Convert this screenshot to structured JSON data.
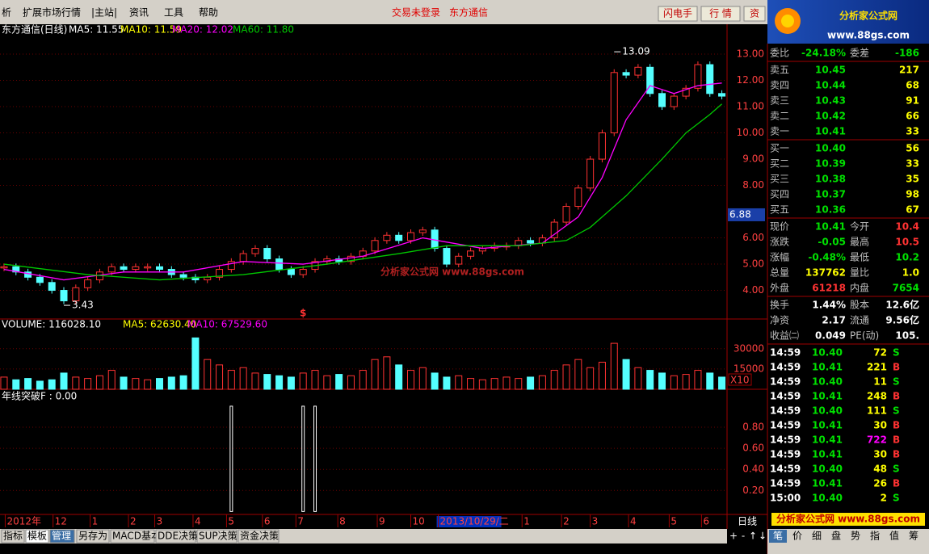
{
  "menu": {
    "items": [
      "析",
      "扩展市场行情",
      "|主站|",
      "资讯",
      "工具",
      "帮助"
    ],
    "status": [
      "交易未登录",
      "东方通信"
    ],
    "buttons": [
      "闪电手",
      "行 情",
      "资"
    ],
    "logo": {
      "title": "分析家公式网",
      "url": "www.88gs.com"
    }
  },
  "chart_data": [
    {
      "type": "candlestick",
      "title": "东方通信(日线)",
      "legend": [
        {
          "label": "MA5: 11.55",
          "color": "#ffffff"
        },
        {
          "label": "MA10: 11.59",
          "color": "#ffff00"
        }
      ],
      "xlim": [
        -0.2,
        60.3
      ],
      "ylim": [
        2.94,
        13.74
      ],
      "yticks": [
        {
          "value": 4,
          "label": "4.00"
        },
        {
          "value": 5,
          "label": "5.00"
        },
        {
          "value": 6,
          "label": "6.00"
        },
        {
          "value": 8,
          "label": "8.00"
        },
        {
          "value": 9,
          "label": "9.00"
        },
        {
          "value": 10,
          "label": "10.00"
        },
        {
          "value": 11,
          "label": "11.00"
        },
        {
          "value": 12,
          "label": "12.00"
        },
        {
          "value": 13,
          "label": "13.00"
        }
      ],
      "grid": true,
      "up_color": "#ff3232",
      "down_color": "#54ffff",
      "values": [
        4.9,
        4.7,
        4.5,
        4.3,
        4.0,
        3.6,
        4.1,
        4.4,
        4.7,
        4.9,
        4.8,
        4.9,
        4.9,
        4.8,
        4.6,
        4.5,
        4.4,
        4.5,
        4.8,
        5.1,
        5.4,
        5.6,
        5.2,
        4.8,
        4.6,
        4.8,
        5.1,
        5.2,
        5.1,
        5.3,
        5.5,
        5.9,
        6.1,
        5.9,
        6.2,
        6.3,
        5.6,
        5.0,
        5.3,
        5.5,
        5.6,
        5.7,
        5.7,
        5.9,
        5.8,
        6.0,
        6.6,
        7.2,
        7.9,
        9.0,
        10.0,
        12.3,
        12.2,
        12.5,
        11.5,
        11.0,
        11.4,
        11.7,
        12.6,
        11.5,
        11.4
      ],
      "series": [
        {
          "name": "MA20: 12.02",
          "color": "#ff00ff",
          "x": [
            0,
            5,
            10,
            15,
            20,
            25,
            30,
            35,
            40,
            45,
            48,
            50,
            52,
            54,
            56,
            58,
            60
          ],
          "values": [
            4.8,
            4.4,
            4.7,
            4.7,
            5.1,
            5.0,
            5.3,
            6.0,
            5.6,
            5.8,
            6.8,
            8.3,
            10.5,
            11.8,
            11.5,
            11.8,
            11.9
          ]
        },
        {
          "name": "MA60: 11.80",
          "color": "#00c800",
          "x": [
            0,
            7,
            13,
            20,
            27,
            33,
            37,
            43,
            47,
            49,
            52,
            55,
            57,
            59,
            60
          ],
          "values": [
            5.0,
            4.6,
            4.4,
            4.6,
            5.0,
            5.4,
            5.7,
            5.7,
            5.9,
            6.4,
            7.6,
            9.0,
            10.0,
            10.7,
            11.1
          ]
        }
      ],
      "annotations": [
        {
          "x": 51,
          "value": 13.09
        },
        {
          "x": 5,
          "value": 3.43
        }
      ],
      "cursor_price": 6.88,
      "marker": {
        "x": 25,
        "text": "$"
      },
      "watermark": "分析家公式网 www.88gs.com"
    },
    {
      "type": "bar",
      "title": "VOLUME: 116028.10",
      "legend": [
        {
          "label": "MA5: 62630.40",
          "color": "#ffff00"
        },
        {
          "label": "MA10: 67529.60",
          "color": "#ff00ff"
        }
      ],
      "scale_label": "X10",
      "ylim": [
        0,
        46000
      ],
      "yticks": [
        15000,
        30000
      ],
      "values": [
        9000,
        7000,
        8000,
        6000,
        7000,
        12000,
        9000,
        8000,
        10000,
        14000,
        9000,
        8000,
        7000,
        8000,
        9000,
        10000,
        38000,
        22000,
        18000,
        14000,
        16000,
        12000,
        11000,
        10000,
        9000,
        12000,
        14000,
        10000,
        11000,
        10000,
        14000,
        22000,
        24000,
        18000,
        14000,
        16000,
        12000,
        9000,
        10000,
        8000,
        7000,
        8000,
        9000,
        8000,
        9000,
        10000,
        14000,
        18000,
        22000,
        16000,
        20000,
        34000,
        22000,
        16000,
        14000,
        12000,
        10000,
        11000,
        14000,
        12000,
        9000
      ]
    },
    {
      "type": "spike",
      "title": "年线突破F : 0.00",
      "ylim": [
        -0.02,
        1.13
      ],
      "yticks": [
        {
          "value": 0.2,
          "label": "0.20"
        },
        {
          "value": 0.4,
          "label": "0.40"
        },
        {
          "value": 0.6,
          "label": "0.60"
        },
        {
          "value": 0.8,
          "label": "0.80"
        }
      ],
      "values": [
        0,
        0,
        0,
        0,
        0,
        0,
        0,
        0,
        0,
        0,
        0,
        0,
        0,
        0,
        0,
        0,
        0,
        0,
        0,
        1,
        0,
        0,
        0,
        0,
        0,
        1,
        1,
        0,
        0,
        0,
        0,
        0,
        0,
        0,
        0,
        0,
        0,
        0,
        0,
        0,
        0,
        0,
        0,
        0,
        0,
        0,
        0,
        0,
        0,
        0,
        0,
        0,
        0,
        0,
        0,
        0,
        0,
        0,
        0,
        0,
        0
      ],
      "xticks": [
        {
          "value": 0.1,
          "label": "2012年"
        },
        {
          "value": 4.1,
          "label": "12"
        },
        {
          "value": 7.2,
          "label": "1"
        },
        {
          "value": 10.4,
          "label": "2"
        },
        {
          "value": 12.6,
          "label": "3"
        },
        {
          "value": 15.8,
          "label": "4"
        },
        {
          "value": 18.6,
          "label": "5"
        },
        {
          "value": 21.6,
          "label": "6"
        },
        {
          "value": 24.4,
          "label": "7"
        },
        {
          "value": 27.9,
          "label": "8"
        },
        {
          "value": 31.2,
          "label": "9"
        },
        {
          "value": 34,
          "label": "10"
        },
        {
          "value": 36.3,
          "label": "2013/10/29/二"
        },
        {
          "value": 43.3,
          "label": "1"
        },
        {
          "value": 46.6,
          "label": "2"
        },
        {
          "value": 49,
          "label": "3"
        },
        {
          "value": 52.2,
          "label": "4"
        },
        {
          "value": 55.6,
          "label": "5"
        },
        {
          "value": 58.3,
          "label": "6"
        }
      ],
      "highlight_tick": 12,
      "period": "日线"
    }
  ],
  "tabs": [
    "指标",
    "模板",
    "管理",
    "另存为",
    "MACD基本",
    "DDE决策",
    "SUP决策",
    "资金决策"
  ],
  "nav": [
    "+",
    "-",
    "↑",
    "↓"
  ],
  "side_tabs": [
    "笔",
    "价",
    "细",
    "盘",
    "势",
    "指",
    "值",
    "筹"
  ],
  "quote": {
    "ratio": {
      "label": "委比",
      "value": "-24.18%",
      "label2": "委差",
      "value2": "-186"
    },
    "asks": [
      {
        "label": "卖五",
        "price": "10.45",
        "volume": "217"
      },
      {
        "label": "卖四",
        "price": "10.44",
        "volume": "68"
      },
      {
        "label": "卖三",
        "price": "10.43",
        "volume": "91"
      },
      {
        "label": "卖二",
        "price": "10.42",
        "volume": "66"
      },
      {
        "label": "卖一",
        "price": "10.41",
        "volume": "33"
      }
    ],
    "bids": [
      {
        "label": "买一",
        "price": "10.40",
        "volume": "56"
      },
      {
        "label": "买二",
        "price": "10.39",
        "volume": "33"
      },
      {
        "label": "买三",
        "price": "10.38",
        "volume": "35"
      },
      {
        "label": "买四",
        "price": "10.37",
        "volume": "98"
      },
      {
        "label": "买五",
        "price": "10.36",
        "volume": "67"
      }
    ],
    "stats": [
      [
        {
          "label": "现价",
          "value": "10.41",
          "color": "#00e000"
        },
        {
          "label": "今开",
          "value": "10.4",
          "color": "#ff3232"
        }
      ],
      [
        {
          "label": "涨跌",
          "value": "-0.05",
          "color": "#00e000"
        },
        {
          "label": "最高",
          "value": "10.5",
          "color": "#ff3232"
        }
      ],
      [
        {
          "label": "涨幅",
          "value": "-0.48%",
          "color": "#00e000"
        },
        {
          "label": "最低",
          "value": "10.2",
          "color": "#00e000"
        }
      ],
      [
        {
          "label": "总量",
          "value": "137762",
          "color": "#ffff00"
        },
        {
          "label": "量比",
          "value": "1.0",
          "color": "#ffff00"
        }
      ],
      [
        {
          "label": "外盘",
          "value": "61218",
          "color": "#ff3232"
        },
        {
          "label": "内盘",
          "value": "7654",
          "color": "#00e000"
        }
      ]
    ],
    "finance": [
      [
        {
          "label": "换手",
          "value": "1.44%"
        },
        {
          "label": "股本",
          "value": "12.6亿"
        }
      ],
      [
        {
          "label": "净资",
          "value": "2.17"
        },
        {
          "label": "流通",
          "value": "9.56亿"
        }
      ],
      [
        {
          "label": "收益㈡",
          "value": "0.049"
        },
        {
          "label": "PE(动)",
          "value": "105."
        }
      ]
    ],
    "ticks": [
      {
        "time": "14:59",
        "price": "10.40",
        "volume": "72",
        "side": "S"
      },
      {
        "time": "14:59",
        "price": "10.41",
        "volume": "221",
        "side": "B"
      },
      {
        "time": "14:59",
        "price": "10.40",
        "volume": "11",
        "side": "S"
      },
      {
        "time": "14:59",
        "price": "10.41",
        "volume": "248",
        "side": "B"
      },
      {
        "time": "14:59",
        "price": "10.40",
        "volume": "111",
        "side": "S"
      },
      {
        "time": "14:59",
        "price": "10.41",
        "volume": "30",
        "side": "B"
      },
      {
        "time": "14:59",
        "price": "10.41",
        "volume": "722",
        "side": "B",
        "volume_color": "#ff00ff"
      },
      {
        "time": "14:59",
        "price": "10.41",
        "volume": "30",
        "side": "B"
      },
      {
        "time": "14:59",
        "price": "10.40",
        "volume": "48",
        "side": "S"
      },
      {
        "time": "14:59",
        "price": "10.41",
        "volume": "26",
        "side": "B"
      },
      {
        "time": "15:00",
        "price": "10.40",
        "volume": "2",
        "side": "S"
      }
    ],
    "banner": "分析家公式网 www.88gs.com"
  }
}
